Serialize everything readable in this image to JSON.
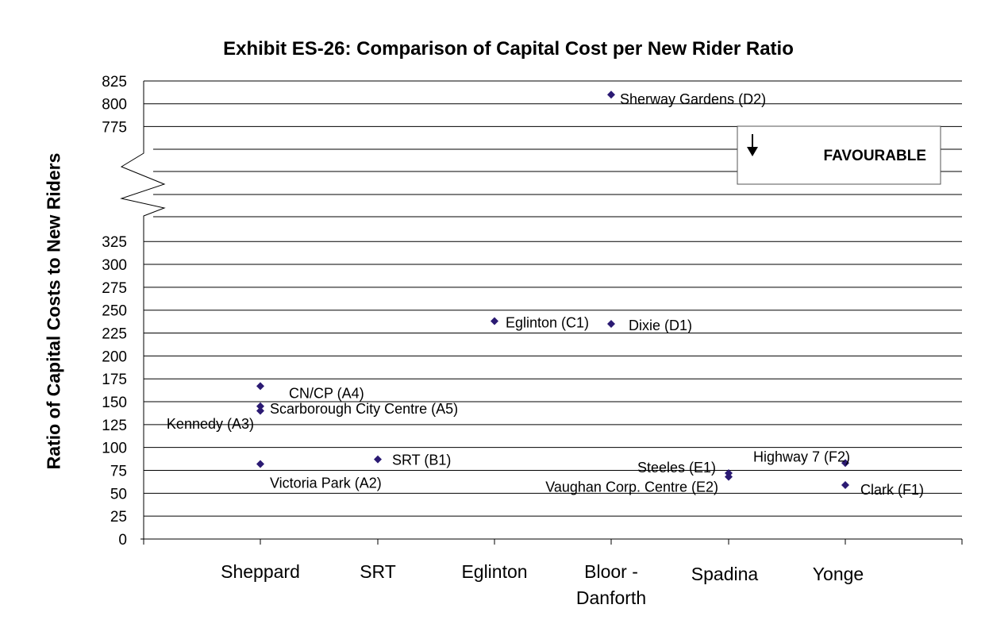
{
  "chart_data": {
    "type": "scatter",
    "title": "Exhibit ES-26:  Comparison of Capital Cost per New Rider Ratio",
    "ylabel": "Ratio of Capital Costs to New Riders",
    "xlabel": "",
    "y_axis_break": {
      "lower_range": [
        0,
        325
      ],
      "upper_range": [
        775,
        825
      ]
    },
    "y_ticks": [
      825,
      800,
      775,
      325,
      300,
      275,
      250,
      225,
      200,
      175,
      150,
      125,
      100,
      75,
      50,
      25,
      0
    ],
    "categories": [
      "Sheppard",
      "SRT",
      "Eglinton",
      "Bloor -\nDanforth",
      "Spadina",
      "Yonge"
    ],
    "category_lines": [
      [
        "Sheppard"
      ],
      [
        "SRT"
      ],
      [
        "Eglinton"
      ],
      [
        "Bloor -",
        "Danforth"
      ],
      [
        "Spadina"
      ],
      [
        "Yonge"
      ]
    ],
    "points": [
      {
        "category": "Sheppard",
        "value": 167,
        "label": "CN/CP (A4)"
      },
      {
        "category": "Sheppard",
        "value": 145,
        "label": "Scarborough City Centre (A5)"
      },
      {
        "category": "Sheppard",
        "value": 140,
        "label": "Kennedy (A3)"
      },
      {
        "category": "Sheppard",
        "value": 82,
        "label": "Victoria Park (A2)"
      },
      {
        "category": "SRT",
        "value": 87,
        "label": "SRT (B1)"
      },
      {
        "category": "Eglinton",
        "value": 238,
        "label": "Eglinton (C1)"
      },
      {
        "category": "Bloor -\nDanforth",
        "value": 235,
        "label": "Dixie (D1)"
      },
      {
        "category": "Bloor -\nDanforth",
        "value": 810,
        "label": "Sherway Gardens (D2)"
      },
      {
        "category": "Spadina",
        "value": 72,
        "label": "Steeles (E1)"
      },
      {
        "category": "Spadina",
        "value": 68,
        "label": "Vaughan Corp. Centre (E2)"
      },
      {
        "category": "Yonge",
        "value": 83,
        "label": "Highway 7 (F2)"
      },
      {
        "category": "Yonge",
        "value": 59,
        "label": "Clark (F1)"
      }
    ],
    "marker_color": "#2b1a73",
    "grid": true,
    "legend": {
      "text": "FAVOURABLE",
      "icon": "down-arrow-icon",
      "placement": "top-right"
    }
  }
}
